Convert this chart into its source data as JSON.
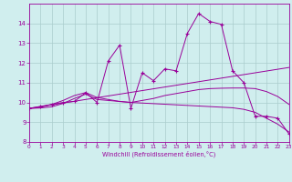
{
  "xlabel": "Windchill (Refroidissement éolien,°C)",
  "x_values": [
    0,
    1,
    2,
    3,
    4,
    5,
    6,
    7,
    8,
    9,
    10,
    11,
    12,
    13,
    14,
    15,
    16,
    17,
    18,
    19,
    20,
    21,
    22,
    23
  ],
  "y_main": [
    9.7,
    9.8,
    9.9,
    10.0,
    10.05,
    10.5,
    10.0,
    12.1,
    12.9,
    9.7,
    11.5,
    11.1,
    11.7,
    11.6,
    13.5,
    14.5,
    14.1,
    13.95,
    11.6,
    11.0,
    9.3,
    9.3,
    9.2,
    8.4
  ],
  "y_trend1": [
    9.7,
    9.79,
    9.88,
    9.97,
    10.06,
    10.15,
    10.24,
    10.33,
    10.42,
    10.51,
    10.6,
    10.69,
    10.78,
    10.87,
    10.96,
    11.05,
    11.14,
    11.23,
    11.32,
    11.41,
    11.5,
    11.59,
    11.68,
    11.77
  ],
  "y_trend2": [
    9.7,
    9.75,
    9.9,
    10.1,
    10.35,
    10.5,
    10.25,
    10.15,
    10.05,
    10.0,
    10.1,
    10.2,
    10.35,
    10.45,
    10.55,
    10.65,
    10.7,
    10.72,
    10.73,
    10.73,
    10.7,
    10.55,
    10.3,
    9.9
  ],
  "y_trend3": [
    9.7,
    9.72,
    9.78,
    9.95,
    10.2,
    10.42,
    10.15,
    10.1,
    10.05,
    10.0,
    9.97,
    9.94,
    9.91,
    9.88,
    9.85,
    9.82,
    9.79,
    9.76,
    9.73,
    9.65,
    9.5,
    9.2,
    8.9,
    8.5
  ],
  "line_color": "#990099",
  "bg_color": "#d0eeee",
  "grid_color": "#aacccc",
  "ylim": [
    8,
    15
  ],
  "yticks": [
    8,
    9,
    10,
    11,
    12,
    13,
    14
  ],
  "xlim": [
    0,
    23
  ]
}
